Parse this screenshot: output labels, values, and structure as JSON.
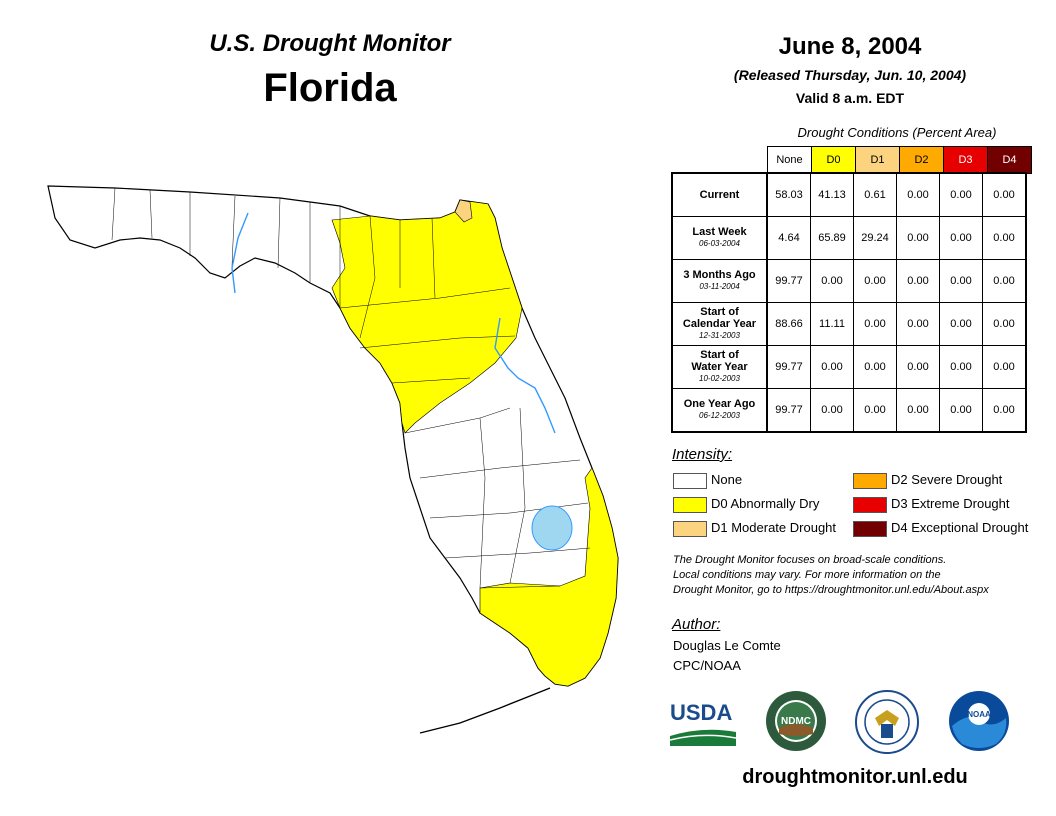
{
  "header": {
    "brand": "U.S. Drought Monitor",
    "state": "Florida",
    "date": "June 8, 2004",
    "released": "(Released Thursday, Jun. 10, 2004)",
    "valid": "Valid 8 a.m. EDT"
  },
  "table": {
    "caption": "Drought Conditions (Percent Area)",
    "columns": [
      {
        "label": "None",
        "color": "#ffffff"
      },
      {
        "label": "D0",
        "color": "#ffff00"
      },
      {
        "label": "D1",
        "color": "#fcd37f"
      },
      {
        "label": "D2",
        "color": "#ffaa00"
      },
      {
        "label": "D3",
        "color": "#e60000"
      },
      {
        "label": "D4",
        "color": "#730000"
      }
    ],
    "rows": [
      {
        "label": "Current",
        "label2": "",
        "date": "",
        "values": [
          "58.03",
          "41.13",
          "0.61",
          "0.00",
          "0.00",
          "0.00"
        ]
      },
      {
        "label": "Last Week",
        "label2": "",
        "date": "06-03-2004",
        "values": [
          "4.64",
          "65.89",
          "29.24",
          "0.00",
          "0.00",
          "0.00"
        ]
      },
      {
        "label": "3 Months Ago",
        "label2": "",
        "date": "03-11-2004",
        "values": [
          "99.77",
          "0.00",
          "0.00",
          "0.00",
          "0.00",
          "0.00"
        ]
      },
      {
        "label": "Start of",
        "label2": "Calendar Year",
        "date": "12-31-2003",
        "values": [
          "88.66",
          "11.11",
          "0.00",
          "0.00",
          "0.00",
          "0.00"
        ]
      },
      {
        "label": "Start of",
        "label2": "Water Year",
        "date": "10-02-2003",
        "values": [
          "99.77",
          "0.00",
          "0.00",
          "0.00",
          "0.00",
          "0.00"
        ]
      },
      {
        "label": "One Year Ago",
        "label2": "",
        "date": "06-12-2003",
        "values": [
          "99.77",
          "0.00",
          "0.00",
          "0.00",
          "0.00",
          "0.00"
        ]
      }
    ]
  },
  "legend": {
    "title": "Intensity:",
    "items": [
      {
        "label": "None",
        "color": "#ffffff"
      },
      {
        "label": "D0 Abnormally Dry",
        "color": "#ffff00"
      },
      {
        "label": "D1 Moderate Drought",
        "color": "#fcd37f"
      },
      {
        "label": "D2 Severe Drought",
        "color": "#ffaa00"
      },
      {
        "label": "D3 Extreme Drought",
        "color": "#e60000"
      },
      {
        "label": "D4 Exceptional Drought",
        "color": "#730000"
      }
    ]
  },
  "note": {
    "line1": "The Drought Monitor focuses on broad-scale conditions.",
    "line2": "Local conditions may vary. For more information on the",
    "line3": "Drought Monitor, go to https://droughtmonitor.unl.edu/About.aspx"
  },
  "author": {
    "title": "Author:",
    "name": "Douglas Le Comte",
    "org": "CPC/NOAA"
  },
  "logos": {
    "usda": "USDA",
    "ndmc": "NDMC",
    "noaa": "NOAA"
  },
  "website": "droughtmonitor.unl.edu",
  "map_colors": {
    "land": "#ffffff",
    "d0": "#ffff00",
    "d1": "#fcd37f",
    "water": "#9fd7f0",
    "river": "#3399ff"
  }
}
